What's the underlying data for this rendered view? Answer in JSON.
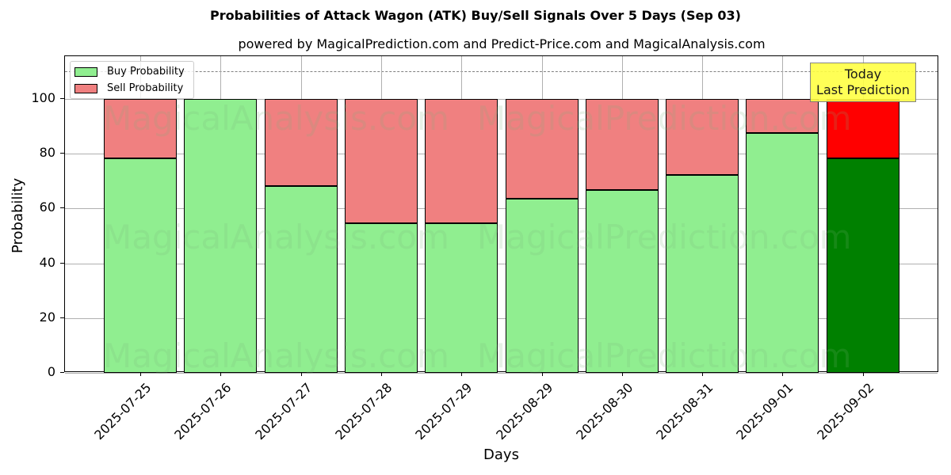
{
  "chart_data": {
    "type": "bar",
    "stacked": true,
    "title": "Probabilities of Attack Wagon (ATK) Buy/Sell Signals Over 5 Days (Sep 03)",
    "subtitle": "powered by MagicalPrediction.com and Predict-Price.com and MagicalAnalysis.com",
    "xlabel": "Days",
    "ylabel": "Probability",
    "ylim": [
      0,
      115
    ],
    "yticks": [
      0,
      20,
      40,
      60,
      80,
      100
    ],
    "grid": true,
    "reference_line": 110,
    "legend_position": "upper left",
    "categories": [
      "2025-07-25",
      "2025-07-26",
      "2025-07-27",
      "2025-07-28",
      "2025-07-29",
      "2025-08-29",
      "2025-08-30",
      "2025-08-31",
      "2025-09-01",
      "2025-09-02"
    ],
    "series": [
      {
        "name": "Buy Probability",
        "color": "#90ee90",
        "values": [
          78.3,
          100.0,
          68.2,
          54.6,
          54.6,
          63.6,
          66.8,
          72.3,
          87.6,
          78.3
        ]
      },
      {
        "name": "Sell Probability",
        "color": "#f08080",
        "values": [
          21.7,
          0.0,
          31.8,
          45.4,
          45.4,
          36.4,
          33.2,
          27.7,
          12.4,
          21.7
        ]
      }
    ],
    "highlight": {
      "index": 9,
      "buy_color": "#008000",
      "sell_color": "#ff0000"
    },
    "annotation": "Today\nLast Prediction"
  },
  "title": "Probabilities of Attack Wagon (ATK) Buy/Sell Signals Over 5 Days (Sep 03)",
  "subtitle": "powered by MagicalPrediction.com and Predict-Price.com and MagicalAnalysis.com",
  "axes": {
    "xlabel": "Days",
    "ylabel": "Probability",
    "yticks": [
      "0",
      "20",
      "40",
      "60",
      "80",
      "100"
    ]
  },
  "legend": {
    "buy": "Buy Probability",
    "sell": "Sell Probability"
  },
  "annotation": {
    "line1": "Today",
    "line2": "Last Prediction"
  },
  "watermarks": [
    "MagicalAnalysis.com",
    "MagicalPrediction.com"
  ]
}
